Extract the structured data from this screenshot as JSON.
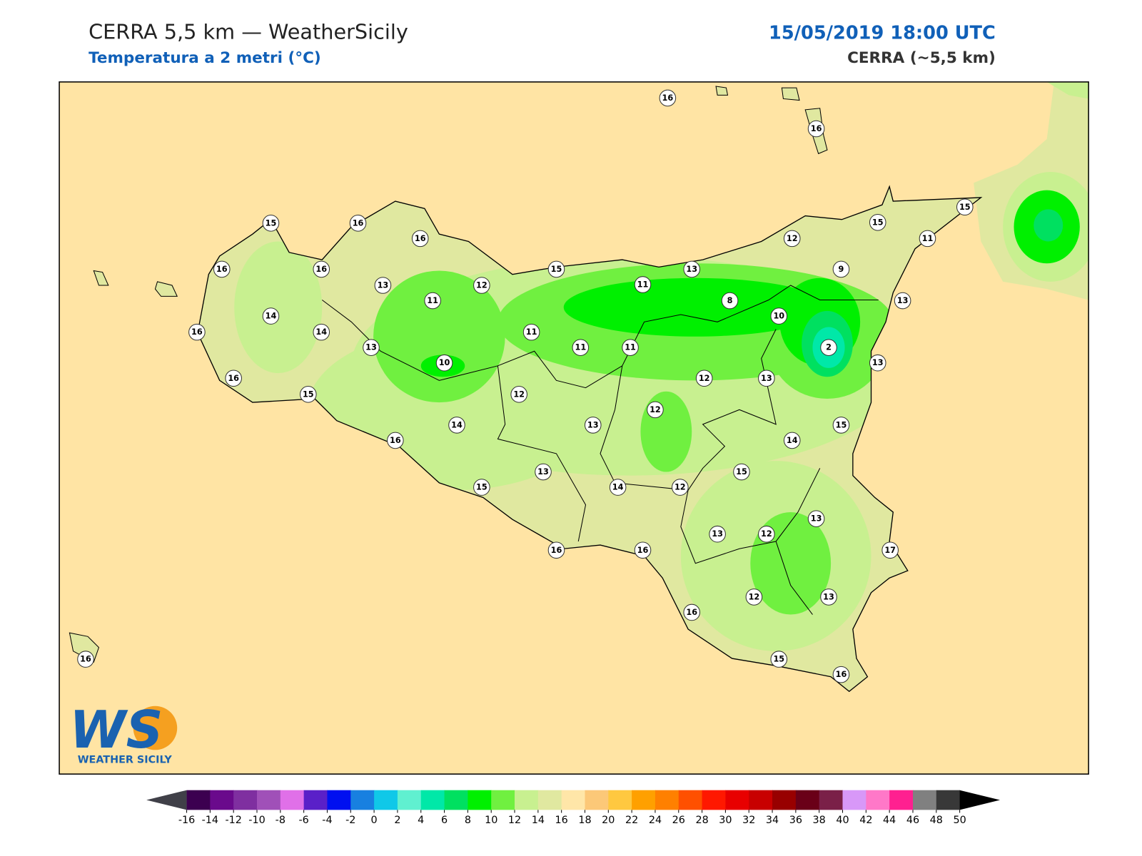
{
  "header": {
    "title": "CERRA 5,5 km — WeatherSicily",
    "subtitle": "Temperatura a 2 metri (°C)",
    "datetime": "15/05/2019 18:00 UTC",
    "model": "CERRA (~5,5 km)"
  },
  "stations": [
    16,
    16,
    15,
    16,
    16,
    16,
    16,
    13,
    12,
    11,
    15,
    11,
    13,
    12,
    15,
    15,
    11,
    9,
    8,
    10,
    13,
    14,
    16,
    14,
    11,
    11,
    11,
    2,
    13,
    10,
    13,
    16,
    12,
    13,
    15,
    12,
    12,
    14,
    13,
    15,
    16,
    14,
    15,
    13,
    15,
    14,
    12,
    13,
    13,
    12,
    16,
    16,
    17,
    12,
    13,
    16,
    15,
    16,
    16
  ],
  "colorbar": {
    "ticks": [
      -16,
      -14,
      -12,
      -10,
      -8,
      -6,
      -4,
      -2,
      0,
      2,
      4,
      6,
      8,
      10,
      12,
      14,
      16,
      18,
      20,
      22,
      24,
      26,
      28,
      30,
      32,
      34,
      36,
      38,
      40,
      42,
      44,
      46,
      48,
      50
    ],
    "colors": [
      "#3c0050",
      "#6a0a8c",
      "#7f2fa0",
      "#a050b8",
      "#e070e8",
      "#5a20c8",
      "#0010f0",
      "#1880e0",
      "#10c8e8",
      "#60f0d0",
      "#00e8a8",
      "#00e060",
      "#00f000",
      "#70f040",
      "#c8f090",
      "#e0e8a0",
      "#ffe6a8",
      "#fcc878",
      "#ffc840",
      "#ffa000",
      "#ff8000",
      "#ff5000",
      "#ff1800",
      "#e80000",
      "#c80000",
      "#980000",
      "#6a0018",
      "#7a2048",
      "#d898f8",
      "#ff78c8",
      "#ff2090",
      "#808080",
      "#383838"
    ],
    "under_color": "#404048",
    "over_color": "#000000"
  },
  "logo": {
    "mark": "WS",
    "name": "WEATHER SICILY"
  }
}
